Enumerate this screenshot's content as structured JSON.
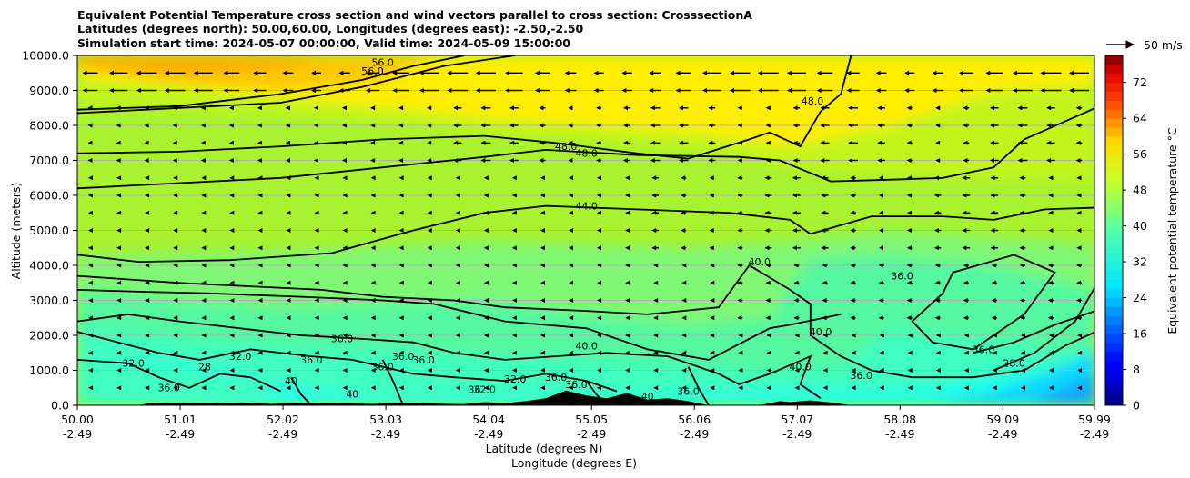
{
  "chart_data": {
    "type": "heatmap",
    "title_lines": [
      "Equivalent Potential Temperature cross section and wind vectors parallel to cross section: CrosssectionA",
      "Latitudes (degrees north): 50.00,60.00, Longitudes (degrees east): -2.50,-2.50",
      "Simulation start time: 2024-05-07 00:00:00, Valid time: 2024-05-09 15:00:00"
    ],
    "ylabel": "Altitude (meters)",
    "xlabel_lines": [
      "Latitude (degrees N)",
      "Longitude (degrees E)"
    ],
    "x_ticks": [
      {
        "lat": "50.00",
        "lon": "-2.49"
      },
      {
        "lat": "51.01",
        "lon": "-2.49"
      },
      {
        "lat": "52.02",
        "lon": "-2.49"
      },
      {
        "lat": "53.03",
        "lon": "-2.49"
      },
      {
        "lat": "54.04",
        "lon": "-2.49"
      },
      {
        "lat": "55.05",
        "lon": "-2.49"
      },
      {
        "lat": "56.06",
        "lon": "-2.49"
      },
      {
        "lat": "57.07",
        "lon": "-2.49"
      },
      {
        "lat": "58.08",
        "lon": "-2.49"
      },
      {
        "lat": "59.09",
        "lon": "-2.49"
      },
      {
        "lat": "59.99",
        "lon": "-2.49"
      }
    ],
    "y_ticks": [
      "0.0",
      "1000.0",
      "2000.0",
      "3000.0",
      "4000.0",
      "5000.0",
      "6000.0",
      "7000.0",
      "8000.0",
      "9000.0",
      "10000.0"
    ],
    "ylim": [
      0,
      10000
    ],
    "grid": "horizontal",
    "colorbar": {
      "label": "Equivalent potential temperature $^\\circ$C",
      "label_display": "Equivalent potential temperature °C",
      "ticks": [
        "0",
        "8",
        "16",
        "24",
        "32",
        "40",
        "48",
        "56",
        "64",
        "72"
      ],
      "range": [
        0,
        78
      ],
      "colormap": "jet"
    },
    "quiver_key": "50 m/s",
    "contour_labels": [
      {
        "text": "56.0",
        "lat": 52.9,
        "alt": 9450
      },
      {
        "text": "56.0",
        "lat": 53.0,
        "alt": 9700
      },
      {
        "text": "48.0",
        "lat": 57.22,
        "alt": 8600
      },
      {
        "text": "48.0",
        "lat": 54.8,
        "alt": 7300
      },
      {
        "text": "48.0",
        "lat": 55.0,
        "alt": 7100
      },
      {
        "text": "44.0",
        "lat": 55.0,
        "alt": 5600
      },
      {
        "text": "40.0",
        "lat": 56.7,
        "alt": 4000
      },
      {
        "text": "36.0",
        "lat": 58.1,
        "alt": 3600
      },
      {
        "text": "36.0",
        "lat": 52.6,
        "alt": 1800
      },
      {
        "text": "40.0",
        "lat": 57.3,
        "alt": 2000
      },
      {
        "text": "40.0",
        "lat": 55.0,
        "alt": 1600
      },
      {
        "text": "36.0",
        "lat": 58.9,
        "alt": 1500
      },
      {
        "text": "28.0",
        "lat": 59.2,
        "alt": 1100
      },
      {
        "text": "36.0",
        "lat": 57.7,
        "alt": 750
      },
      {
        "text": "40.0",
        "lat": 57.1,
        "alt": 1000
      },
      {
        "text": "32.0",
        "lat": 50.55,
        "alt": 1100
      },
      {
        "text": "32.0",
        "lat": 51.6,
        "alt": 1300
      },
      {
        "text": "36.0",
        "lat": 52.3,
        "alt": 1200
      },
      {
        "text": "36.0",
        "lat": 53.2,
        "alt": 1300
      },
      {
        "text": "36.0",
        "lat": 53.4,
        "alt": 1200
      },
      {
        "text": "36.0",
        "lat": 53.0,
        "alt": 1000
      },
      {
        "text": "32.0",
        "lat": 54.0,
        "alt": 350
      },
      {
        "text": "32.0",
        "lat": 54.3,
        "alt": 650
      },
      {
        "text": "36.0",
        "lat": 54.7,
        "alt": 700
      },
      {
        "text": "36.0",
        "lat": 54.9,
        "alt": 500
      },
      {
        "text": "40",
        "lat": 52.1,
        "alt": 600
      },
      {
        "text": "40",
        "lat": 52.7,
        "alt": 220
      },
      {
        "text": "36.0",
        "lat": 56.0,
        "alt": 300
      },
      {
        "text": "36.0",
        "lat": 50.9,
        "alt": 400
      },
      {
        "text": "28",
        "lat": 51.25,
        "alt": 1000
      },
      {
        "text": "36",
        "lat": 53.9,
        "alt": 350
      },
      {
        "text": "40",
        "lat": 55.6,
        "alt": 150
      }
    ]
  }
}
